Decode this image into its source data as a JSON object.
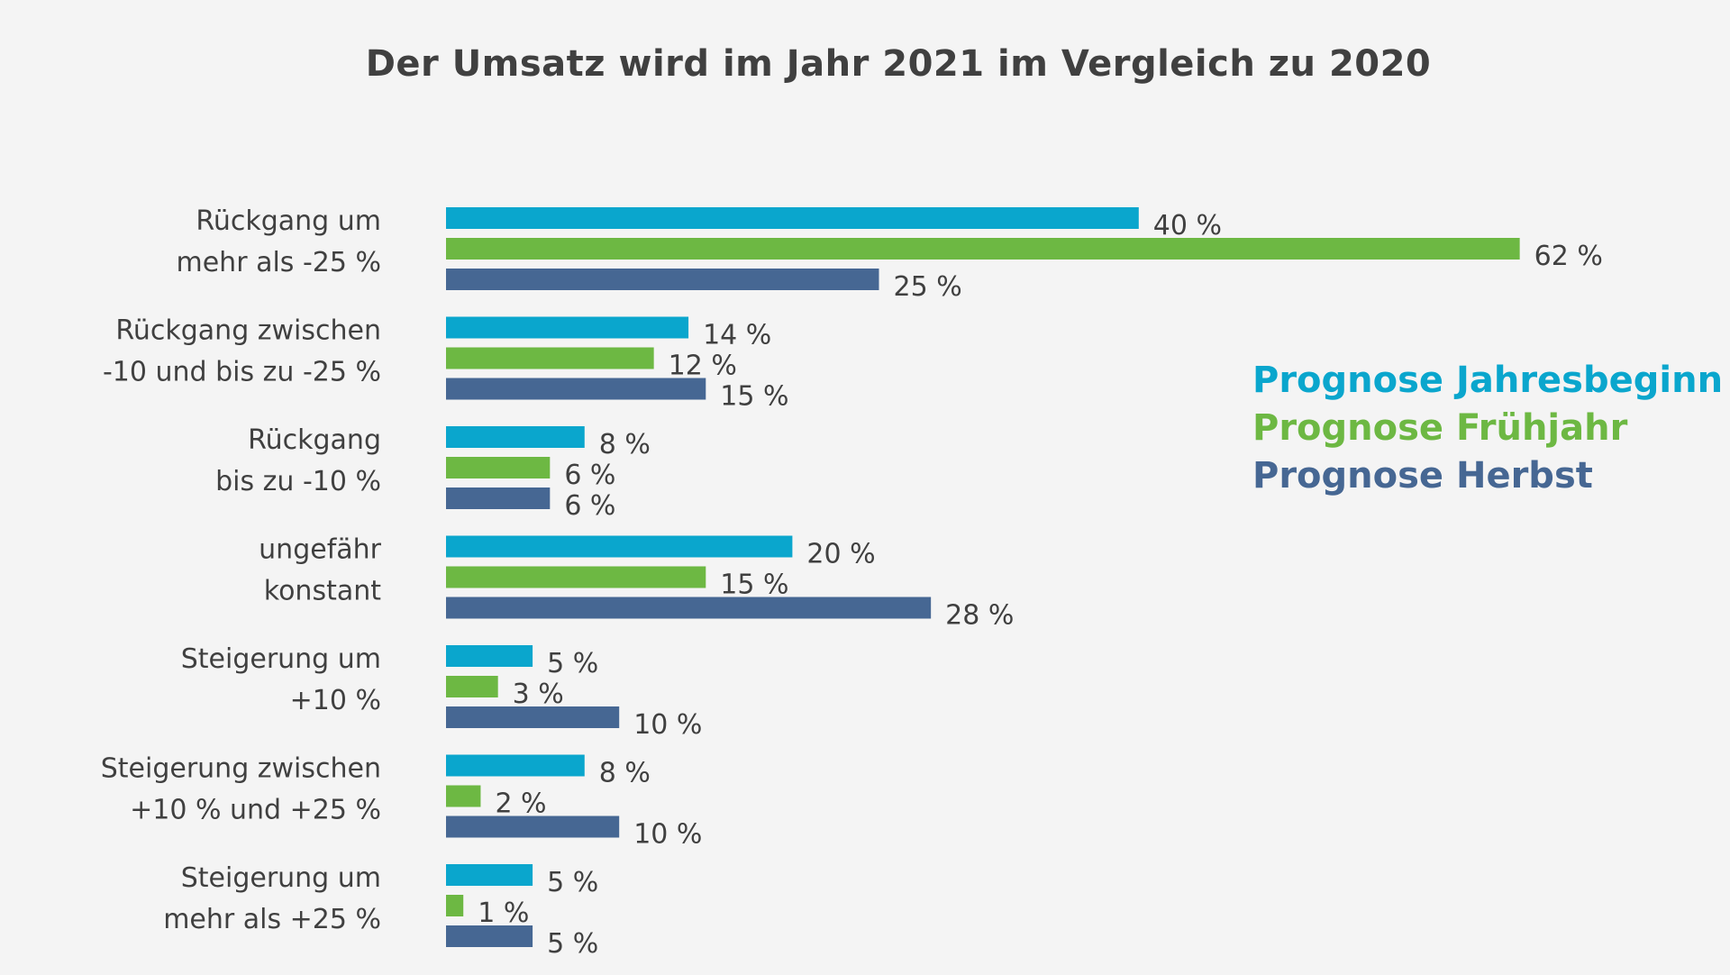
{
  "colors": {
    "background": "#f4f4f4",
    "text": "#404040",
    "series": [
      "#0aa6cd",
      "#6db843",
      "#466793"
    ]
  },
  "chart_data": {
    "type": "bar",
    "orientation": "horizontal",
    "title": "Der Umsatz wird im Jahr 2021 im Vergleich zu 2020",
    "categories": [
      [
        "Rückgang um",
        "mehr als -25 %"
      ],
      [
        "Rückgang zwischen",
        "-10 und bis zu -25 %"
      ],
      [
        "Rückgang",
        "bis zu -10 %"
      ],
      [
        "ungefähr",
        "konstant"
      ],
      [
        "Steigerung um",
        "+10 %"
      ],
      [
        "Steigerung zwischen",
        "+10 % und +25 %"
      ],
      [
        "Steigerung um",
        "mehr als +25 %"
      ]
    ],
    "series": [
      {
        "name": "Prognose Jahresbeginn",
        "values": [
          40,
          14,
          8,
          20,
          5,
          8,
          5
        ],
        "labels": [
          "40 %",
          "14 %",
          "8 %",
          "20 %",
          "5 %",
          "8 %",
          "5 %"
        ]
      },
      {
        "name": "Prognose Frühjahr",
        "values": [
          62,
          12,
          6,
          15,
          3,
          2,
          1
        ],
        "labels": [
          "62 %",
          "12 %",
          "6 %",
          "15 %",
          "3 %",
          "2 %",
          "1 %"
        ]
      },
      {
        "name": "Prognose Herbst",
        "values": [
          25,
          15,
          6,
          28,
          10,
          10,
          5
        ],
        "labels": [
          "25 %",
          "15 %",
          "6 %",
          "28 %",
          "10 %",
          "10 %",
          "5 %"
        ]
      }
    ],
    "xlim": [
      0,
      62
    ],
    "grid": false,
    "axes_visible": false,
    "legend_position": "right"
  }
}
